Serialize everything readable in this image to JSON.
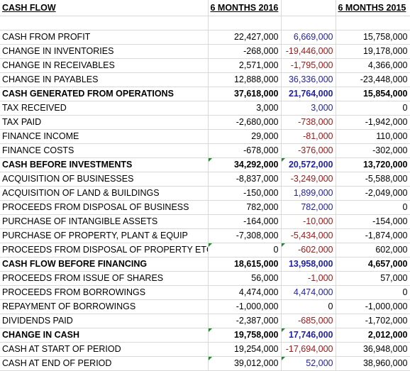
{
  "header": {
    "title": "CASH FLOW",
    "col_2016": "6 MONTHS 2016",
    "col_mid": "",
    "col_2015": "6 MONTHS 2015"
  },
  "rows": [
    {
      "label": "CASH FROM PROFIT",
      "v2016": "22,427,000",
      "diff": "6,669,000",
      "diff_color": "blue",
      "v2015": "15,758,000",
      "bold": false
    },
    {
      "label": "CHANGE IN INVENTORIES",
      "v2016": "-268,000",
      "diff": "-19,446,000",
      "diff_color": "red",
      "v2015": "19,178,000",
      "bold": false
    },
    {
      "label": "CHANGE IN RECEIVABLES",
      "v2016": "2,571,000",
      "diff": "-1,795,000",
      "diff_color": "red",
      "v2015": "4,366,000",
      "bold": false
    },
    {
      "label": "CHANGE IN PAYABLES",
      "v2016": "12,888,000",
      "diff": "36,336,000",
      "diff_color": "blue",
      "v2015": "-23,448,000",
      "bold": false
    },
    {
      "label": "CASH GENERATED FROM OPERATIONS",
      "v2016": "37,618,000",
      "diff": "21,764,000",
      "diff_color": "blue",
      "v2015": "15,854,000",
      "bold": true
    },
    {
      "label": "TAX RECEIVED",
      "v2016": "3,000",
      "diff": "3,000",
      "diff_color": "blue",
      "v2015": "0",
      "bold": false
    },
    {
      "label": "TAX PAID",
      "v2016": "-2,680,000",
      "diff": "-738,000",
      "diff_color": "red",
      "v2015": "-1,942,000",
      "bold": false
    },
    {
      "label": "FINANCE INCOME",
      "v2016": "29,000",
      "diff": "-81,000",
      "diff_color": "red",
      "v2015": "110,000",
      "bold": false
    },
    {
      "label": "FINANCE COSTS",
      "v2016": "-678,000",
      "diff": "-376,000",
      "diff_color": "red",
      "v2015": "-302,000",
      "bold": false
    },
    {
      "label": "CASH BEFORE INVESTMENTS",
      "v2016": "34,292,000",
      "diff": "20,572,000",
      "diff_color": "blue",
      "v2015": "13,720,000",
      "bold": true,
      "marks": true
    },
    {
      "label": "ACQUISITION OF BUSINESSES",
      "v2016": "-8,837,000",
      "diff": "-3,249,000",
      "diff_color": "red",
      "v2015": "-5,588,000",
      "bold": false
    },
    {
      "label": "ACQUISITION OF LAND & BUILDINGS",
      "v2016": "-150,000",
      "diff": "1,899,000",
      "diff_color": "blue",
      "v2015": "-2,049,000",
      "bold": false
    },
    {
      "label": "PROCEEDS FROM DISPOSAL OF BUSINESS",
      "v2016": "782,000",
      "diff": "782,000",
      "diff_color": "blue",
      "v2015": "0",
      "bold": false
    },
    {
      "label": "PURCHASE OF INTANGIBLE ASSETS",
      "v2016": "-164,000",
      "diff": "-10,000",
      "diff_color": "red",
      "v2015": "-154,000",
      "bold": false
    },
    {
      "label": "PURCHASE OF PROPERTY, PLANT & EQUIP",
      "v2016": "-7,308,000",
      "diff": "-5,434,000",
      "diff_color": "red",
      "v2015": "-1,874,000",
      "bold": false
    },
    {
      "label": "PROCEEDS FROM DISPOSAL OF PROPERTY ETC",
      "v2016": "0",
      "diff": "-602,000",
      "diff_color": "red",
      "v2015": "602,000",
      "bold": false,
      "marks": true
    },
    {
      "label": "CASH FLOW BEFORE FINANCING",
      "v2016": "18,615,000",
      "diff": "13,958,000",
      "diff_color": "blue",
      "v2015": "4,657,000",
      "bold": true
    },
    {
      "label": "PROCEEDS FROM ISSUE OF SHARES",
      "v2016": "56,000",
      "diff": "-1,000",
      "diff_color": "red",
      "v2015": "57,000",
      "bold": false
    },
    {
      "label": "PROCEEDS FROM BORROWINGS",
      "v2016": "4,474,000",
      "diff": "4,474,000",
      "diff_color": "blue",
      "v2015": "0",
      "bold": false
    },
    {
      "label": "REPAYMENT OF BORROWINGS",
      "v2016": "-1,000,000",
      "diff": "0",
      "diff_color": "black",
      "v2015": "-1,000,000",
      "bold": false
    },
    {
      "label": "DIVIDENDS PAID",
      "v2016": "-2,387,000",
      "diff": "-685,000",
      "diff_color": "red",
      "v2015": "-1,702,000",
      "bold": false
    },
    {
      "label": "CHANGE IN CASH",
      "v2016": "19,758,000",
      "diff": "17,746,000",
      "diff_color": "blue",
      "v2015": "2,012,000",
      "bold": true,
      "marks": true
    },
    {
      "label": "CASH AT START OF PERIOD",
      "v2016": "19,254,000",
      "diff": "-17,694,000",
      "diff_color": "red",
      "v2015": "36,948,000",
      "bold": false
    },
    {
      "label": "CASH AT END OF PERIOD",
      "v2016": "39,012,000",
      "diff": "52,000",
      "diff_color": "blue",
      "v2015": "38,960,000",
      "bold": false,
      "marks": true
    }
  ]
}
